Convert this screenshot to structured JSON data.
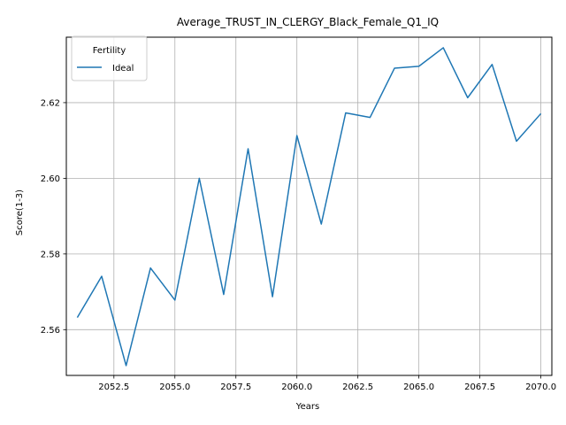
{
  "chart_data": {
    "type": "line",
    "title": "Average_TRUST_IN_CLERGY_Black_Female_Q1_IQ",
    "xlabel": "Years",
    "ylabel": "Score(1-3)",
    "xlim": [
      2050.55,
      2070.45
    ],
    "ylim": [
      2.5479,
      2.6373
    ],
    "xticks": [
      2052.5,
      2055.0,
      2057.5,
      2060.0,
      2062.5,
      2065.0,
      2067.5,
      2070.0
    ],
    "xtick_labels": [
      "2052.5",
      "2055.0",
      "2057.5",
      "2060.0",
      "2062.5",
      "2065.0",
      "2067.5",
      "2070.0"
    ],
    "yticks": [
      2.56,
      2.58,
      2.6,
      2.62
    ],
    "ytick_labels": [
      "2.56",
      "2.58",
      "2.60",
      "2.62"
    ],
    "grid": true,
    "legend": {
      "title": "Fertility",
      "position": "top-left"
    },
    "series": [
      {
        "name": "Ideal",
        "color": "#1f77b4",
        "x": [
          2051,
          2052,
          2053,
          2054,
          2055,
          2056,
          2057,
          2058,
          2059,
          2060,
          2061,
          2062,
          2063,
          2064,
          2065,
          2066,
          2067,
          2068,
          2069,
          2070
        ],
        "y": [
          2.5632,
          2.5741,
          2.5505,
          2.5763,
          2.5678,
          2.6,
          2.5693,
          2.6078,
          2.5687,
          2.6113,
          2.5879,
          2.6173,
          2.6161,
          2.6291,
          2.6296,
          2.6345,
          2.6213,
          2.6301,
          2.6098,
          2.6171
        ]
      }
    ]
  }
}
